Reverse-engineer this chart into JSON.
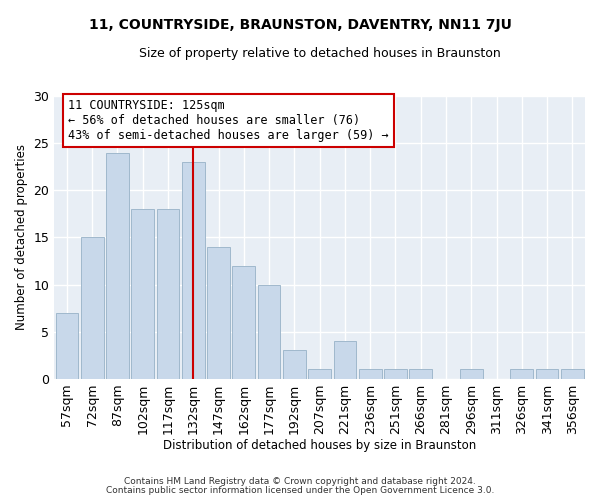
{
  "title": "11, COUNTRYSIDE, BRAUNSTON, DAVENTRY, NN11 7JU",
  "subtitle": "Size of property relative to detached houses in Braunston",
  "xlabel": "Distribution of detached houses by size in Braunston",
  "ylabel": "Number of detached properties",
  "bar_color": "#c8d8ea",
  "bar_edge_color": "#a0b8cc",
  "categories": [
    "57sqm",
    "72sqm",
    "87sqm",
    "102sqm",
    "117sqm",
    "132sqm",
    "147sqm",
    "162sqm",
    "177sqm",
    "192sqm",
    "207sqm",
    "221sqm",
    "236sqm",
    "251sqm",
    "266sqm",
    "281sqm",
    "296sqm",
    "311sqm",
    "326sqm",
    "341sqm",
    "356sqm"
  ],
  "values": [
    7,
    15,
    24,
    18,
    18,
    23,
    14,
    12,
    10,
    3,
    1,
    4,
    1,
    1,
    1,
    0,
    1,
    0,
    1,
    1,
    1
  ],
  "vline_x": 5.0,
  "vline_color": "#cc0000",
  "annotation_text": "11 COUNTRYSIDE: 125sqm\n← 56% of detached houses are smaller (76)\n43% of semi-detached houses are larger (59) →",
  "annotation_box_edgecolor": "#cc0000",
  "ylim": [
    0,
    30
  ],
  "yticks": [
    0,
    5,
    10,
    15,
    20,
    25,
    30
  ],
  "footer_line1": "Contains HM Land Registry data © Crown copyright and database right 2024.",
  "footer_line2": "Contains public sector information licensed under the Open Government Licence 3.0.",
  "bg_color": "#ffffff",
  "plot_bg_color": "#e8eef5",
  "grid_color": "#ffffff"
}
